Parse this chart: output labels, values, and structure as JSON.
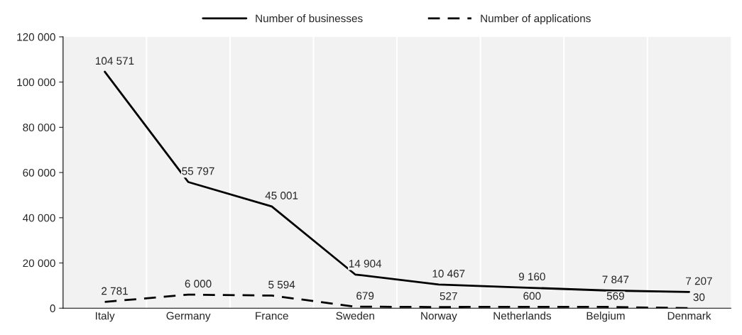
{
  "chart_data": {
    "type": "line",
    "categories": [
      "Italy",
      "Germany",
      "France",
      "Sweden",
      "Norway",
      "Netherlands",
      "Belgium",
      "Denmark"
    ],
    "series": [
      {
        "name": "Number of businesses",
        "color": "#000000",
        "line_style": "solid",
        "values": [
          104571,
          55797,
          45001,
          14904,
          10467,
          9160,
          7847,
          7207
        ],
        "value_labels": [
          "104 571",
          "55 797",
          "45 001",
          "14 904",
          "10 467",
          "9 160",
          "7 847",
          "7 207"
        ]
      },
      {
        "name": "Number of applications",
        "color": "#000000",
        "line_style": "dashed",
        "values": [
          2781,
          6000,
          5594,
          679,
          527,
          600,
          569,
          30
        ],
        "value_labels": [
          "2 781",
          "6 000",
          "5 594",
          "679",
          "527",
          "600",
          "569",
          "30"
        ]
      }
    ],
    "ylim": [
      0,
      120000
    ],
    "yticks": [
      {
        "value": 0,
        "label": "0"
      },
      {
        "value": 20000,
        "label": "20 000"
      },
      {
        "value": 40000,
        "label": "40 000"
      },
      {
        "value": 60000,
        "label": "60 000"
      },
      {
        "value": 80000,
        "label": "80 000"
      },
      {
        "value": 100000,
        "label": "100 000"
      },
      {
        "value": 120000,
        "label": "120 000"
      }
    ],
    "grid": false,
    "legend": "top",
    "marker": "none"
  }
}
